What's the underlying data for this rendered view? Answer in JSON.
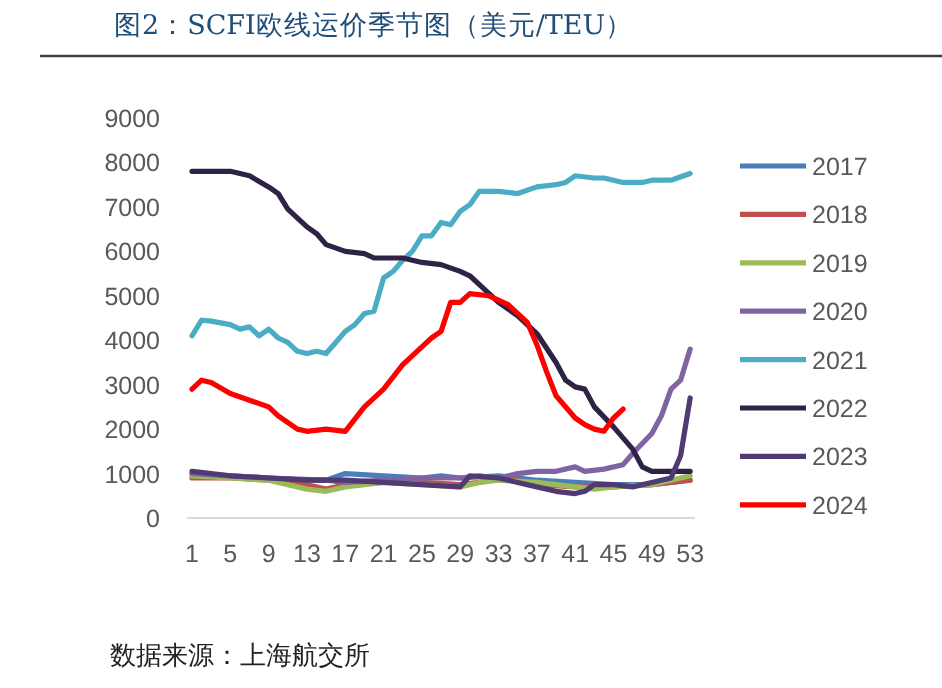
{
  "chart_data": {
    "type": "line",
    "title": "图2：SCFI欧线运价季节图（美元/TEU）",
    "annotations": [
      "数据来源：上海航交所"
    ],
    "xlim": [
      0.5,
      53.5
    ],
    "xticks": [
      1,
      5,
      9,
      13,
      17,
      21,
      25,
      29,
      33,
      37,
      41,
      45,
      49,
      53
    ],
    "ylim": [
      0,
      9000
    ],
    "yticks": [
      0,
      1000,
      2000,
      3000,
      4000,
      5000,
      6000,
      7000,
      8000,
      9000
    ],
    "legend": "right",
    "grid": false,
    "marker": "none",
    "line_style": "solid",
    "series": [
      {
        "name": "2017",
        "color": "#4a7ebb",
        "x": [
          1,
          5,
          9,
          13,
          15,
          17,
          21,
          25,
          27,
          29,
          33,
          37,
          41,
          45,
          49,
          51,
          53
        ],
        "values": [
          1000,
          950,
          900,
          850,
          850,
          1000,
          950,
          900,
          950,
          900,
          950,
          850,
          800,
          750,
          750,
          800,
          850
        ]
      },
      {
        "name": "2018",
        "color": "#c0504d",
        "x": [
          1,
          5,
          9,
          13,
          15,
          17,
          21,
          25,
          29,
          31,
          33,
          35,
          37,
          41,
          45,
          49,
          51,
          53
        ],
        "values": [
          900,
          900,
          850,
          750,
          650,
          750,
          800,
          800,
          750,
          800,
          900,
          850,
          750,
          700,
          700,
          750,
          800,
          850
        ]
      },
      {
        "name": "2019",
        "color": "#9bbb59",
        "x": [
          1,
          5,
          9,
          11,
          13,
          15,
          17,
          21,
          25,
          29,
          31,
          33,
          37,
          41,
          43,
          45,
          49,
          51,
          53
        ],
        "values": [
          950,
          900,
          850,
          750,
          650,
          600,
          700,
          800,
          750,
          700,
          800,
          850,
          800,
          700,
          650,
          700,
          750,
          850,
          950
        ]
      },
      {
        "name": "2020",
        "color": "#8064a2",
        "x": [
          1,
          5,
          9,
          15,
          17,
          25,
          29,
          31,
          33,
          35,
          37,
          39,
          41,
          42,
          44,
          46,
          47,
          49,
          50,
          51,
          52,
          53
        ],
        "values": [
          1000,
          950,
          900,
          850,
          800,
          900,
          900,
          950,
          900,
          1000,
          1050,
          1050,
          1150,
          1050,
          1100,
          1200,
          1450,
          1900,
          2300,
          2900,
          3100,
          3800
        ]
      },
      {
        "name": "2021",
        "color": "#4bacc6",
        "x": [
          1,
          2,
          3,
          5,
          6,
          7,
          8,
          9,
          10,
          11,
          12,
          13,
          14,
          15,
          16,
          17,
          18,
          19,
          20,
          21,
          22,
          23,
          24,
          25,
          26,
          27,
          28,
          29,
          30,
          31,
          33,
          35,
          37,
          39,
          40,
          41,
          43,
          44,
          46,
          48,
          49,
          51,
          53
        ],
        "values": [
          4100,
          4450,
          4430,
          4350,
          4250,
          4300,
          4100,
          4250,
          4050,
          3950,
          3750,
          3700,
          3750,
          3700,
          3950,
          4200,
          4350,
          4600,
          4650,
          5400,
          5550,
          5800,
          6000,
          6350,
          6350,
          6650,
          6600,
          6900,
          7050,
          7350,
          7350,
          7300,
          7450,
          7500,
          7550,
          7700,
          7650,
          7650,
          7550,
          7550,
          7600,
          7600,
          7750
        ]
      },
      {
        "name": "2022",
        "color": "#2e2245",
        "x": [
          1,
          5,
          7,
          9,
          10,
          11,
          13,
          14,
          15,
          17,
          19,
          20,
          23,
          25,
          27,
          29,
          30,
          31,
          33,
          35,
          37,
          39,
          40,
          41,
          42,
          43,
          45,
          47,
          48,
          49,
          51,
          53
        ],
        "values": [
          7800,
          7800,
          7700,
          7450,
          7300,
          6950,
          6550,
          6400,
          6150,
          6000,
          5950,
          5850,
          5850,
          5750,
          5700,
          5550,
          5450,
          5250,
          4850,
          4550,
          4150,
          3500,
          3100,
          2950,
          2900,
          2500,
          2050,
          1550,
          1150,
          1050,
          1050,
          1050
        ]
      },
      {
        "name": "2023",
        "color": "#4f3b72",
        "x": [
          1,
          5,
          9,
          13,
          17,
          21,
          25,
          29,
          30,
          33,
          35,
          37,
          39,
          41,
          42,
          43,
          45,
          47,
          49,
          51,
          52,
          53
        ],
        "values": [
          1050,
          950,
          900,
          850,
          850,
          800,
          750,
          700,
          950,
          900,
          800,
          700,
          600,
          550,
          600,
          750,
          750,
          700,
          800,
          900,
          1400,
          2700
        ]
      },
      {
        "name": "2024",
        "color": "#ff0000",
        "x": [
          1,
          2,
          3,
          5,
          7,
          9,
          10,
          12,
          13,
          15,
          17,
          19,
          21,
          23,
          25,
          26,
          27,
          28,
          29,
          30,
          32,
          34,
          36,
          37,
          38,
          39,
          41,
          42,
          43,
          44,
          45,
          46
        ],
        "values": [
          2900,
          3100,
          3050,
          2800,
          2650,
          2500,
          2300,
          2000,
          1950,
          2000,
          1950,
          2500,
          2900,
          3450,
          3850,
          4050,
          4200,
          4850,
          4850,
          5050,
          5000,
          4800,
          4400,
          3900,
          3300,
          2750,
          2250,
          2100,
          2000,
          1950,
          2250,
          2450
        ]
      }
    ]
  }
}
